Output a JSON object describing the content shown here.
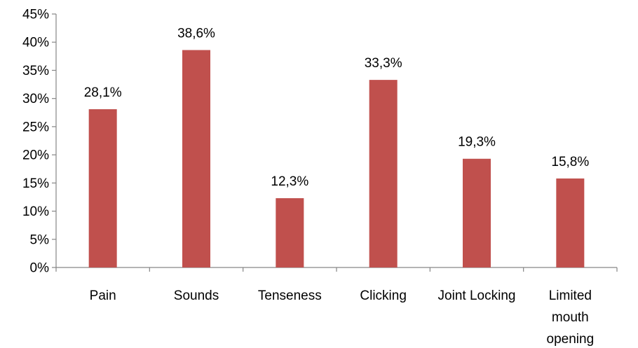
{
  "chart_data": {
    "type": "bar",
    "title": "",
    "xlabel": "",
    "ylabel": "",
    "categories": [
      [
        "Pain"
      ],
      [
        "Sounds"
      ],
      [
        "Tenseness"
      ],
      [
        "Clicking"
      ],
      [
        "Joint Locking"
      ],
      [
        "Limited",
        "mouth",
        "opening"
      ]
    ],
    "values": [
      28.1,
      38.6,
      12.3,
      33.3,
      19.3,
      15.8
    ],
    "data_labels": [
      "28,1%",
      "38,6%",
      "12,3%",
      "33,3%",
      "19,3%",
      "15,8%"
    ],
    "ylim": [
      0,
      45
    ],
    "yticks": [
      0,
      5,
      10,
      15,
      20,
      25,
      30,
      35,
      40,
      45
    ],
    "ytick_labels": [
      "0%",
      "5%",
      "10%",
      "15%",
      "20%",
      "25%",
      "30%",
      "35%",
      "40%",
      "45%"
    ],
    "grid": false,
    "legend": "none",
    "bar_color": "#C0504D"
  }
}
